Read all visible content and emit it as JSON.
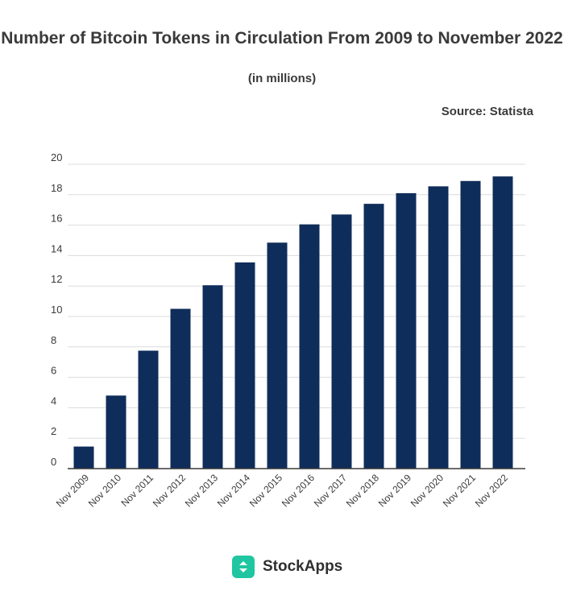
{
  "chart_data": {
    "type": "bar",
    "title": "Number of Bitcoin Tokens in Circulation From 2009 to November 2022",
    "subtitle": "(in millions)",
    "source": "Source: Statista",
    "categories": [
      "Nov 2009",
      "Nov 2010",
      "Nov 2011",
      "Nov 2012",
      "Nov 2013",
      "Nov 2014",
      "Nov 2015",
      "Nov 2016",
      "Nov 2017",
      "Nov 2018",
      "Nov 2019",
      "Nov 2020",
      "Nov 2021",
      "Nov 2022"
    ],
    "values": [
      1.45,
      4.8,
      7.75,
      10.5,
      12.05,
      13.55,
      14.85,
      16.05,
      16.7,
      17.4,
      18.1,
      18.55,
      18.9,
      19.2
    ],
    "ylim": [
      0,
      20
    ],
    "yticks": [
      0,
      2,
      4,
      6,
      8,
      10,
      12,
      14,
      16,
      18,
      20
    ],
    "grid": true,
    "bar_color": "#0f2d5a"
  },
  "brand": {
    "name": "StockApps",
    "logo_icon": "stockapps-logo-icon",
    "logo_color": "#1fc6a1"
  }
}
